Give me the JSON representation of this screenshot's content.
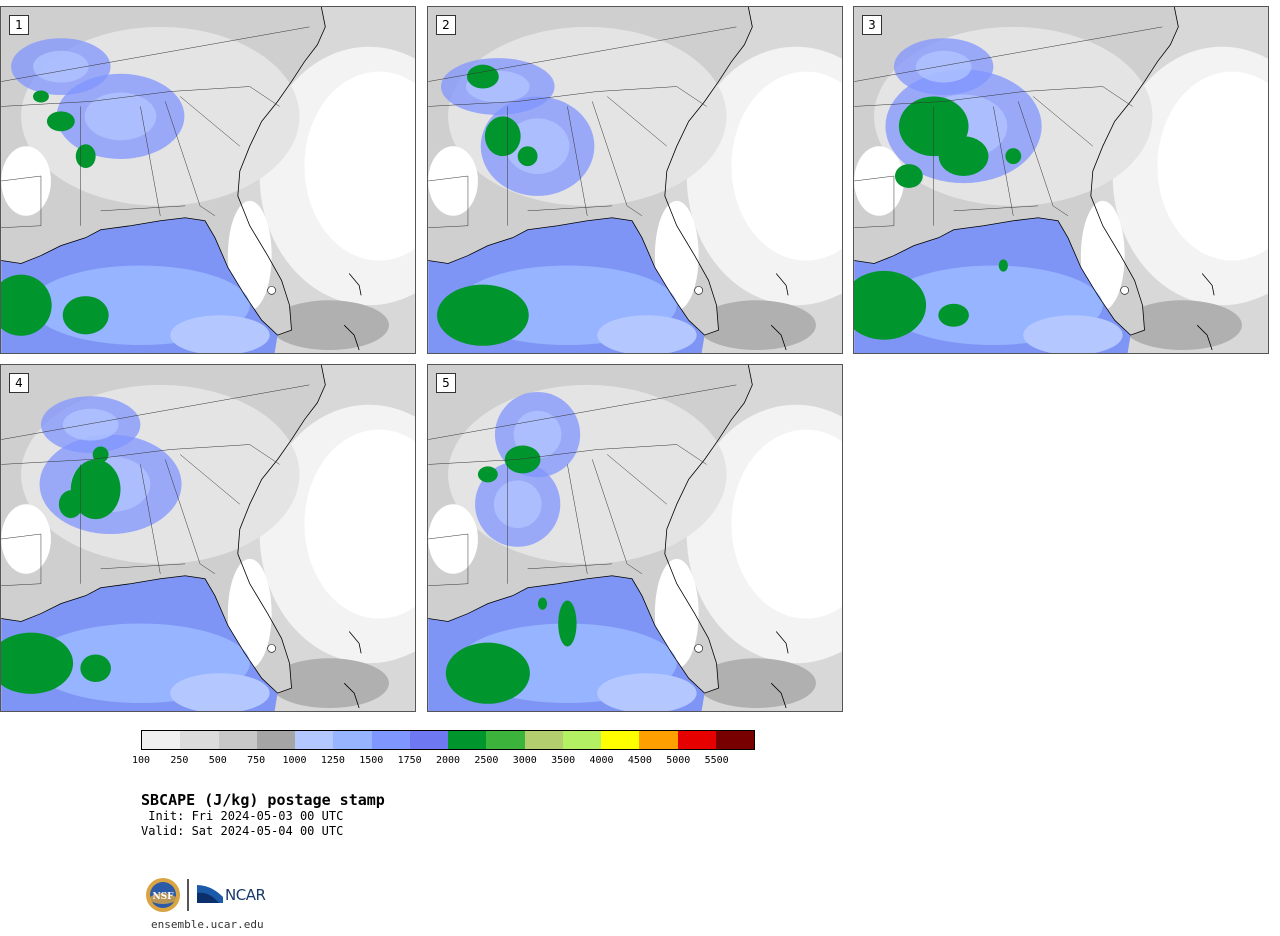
{
  "panels": [
    {
      "label": "1"
    },
    {
      "label": "2"
    },
    {
      "label": "3"
    },
    {
      "label": "4"
    },
    {
      "label": "5"
    }
  ],
  "colorbar": {
    "colors": [
      "#f0f0f0",
      "#dcdcdc",
      "#c8c8c8",
      "#a5a5a5",
      "#b4c8ff",
      "#96b4ff",
      "#8096ff",
      "#6e78f0",
      "#00962d",
      "#3cb43c",
      "#b4cd6e",
      "#b4f064",
      "#ffff00",
      "#ffa000",
      "#e60000",
      "#780000"
    ],
    "ticks": [
      "100",
      "250",
      "500",
      "750",
      "1000",
      "1250",
      "1500",
      "1750",
      "2000",
      "2500",
      "3000",
      "3500",
      "4000",
      "4500",
      "5000",
      "5500"
    ]
  },
  "title": "SBCAPE (J/kg) postage stamp",
  "init": " Init: Fri 2024-05-03 00 UTC",
  "valid": "Valid: Sat 2024-05-04 00 UTC",
  "logo": {
    "nsf_text": "NSF",
    "ncar_text": "NCAR"
  },
  "url": "ensemble.ucar.edu"
}
